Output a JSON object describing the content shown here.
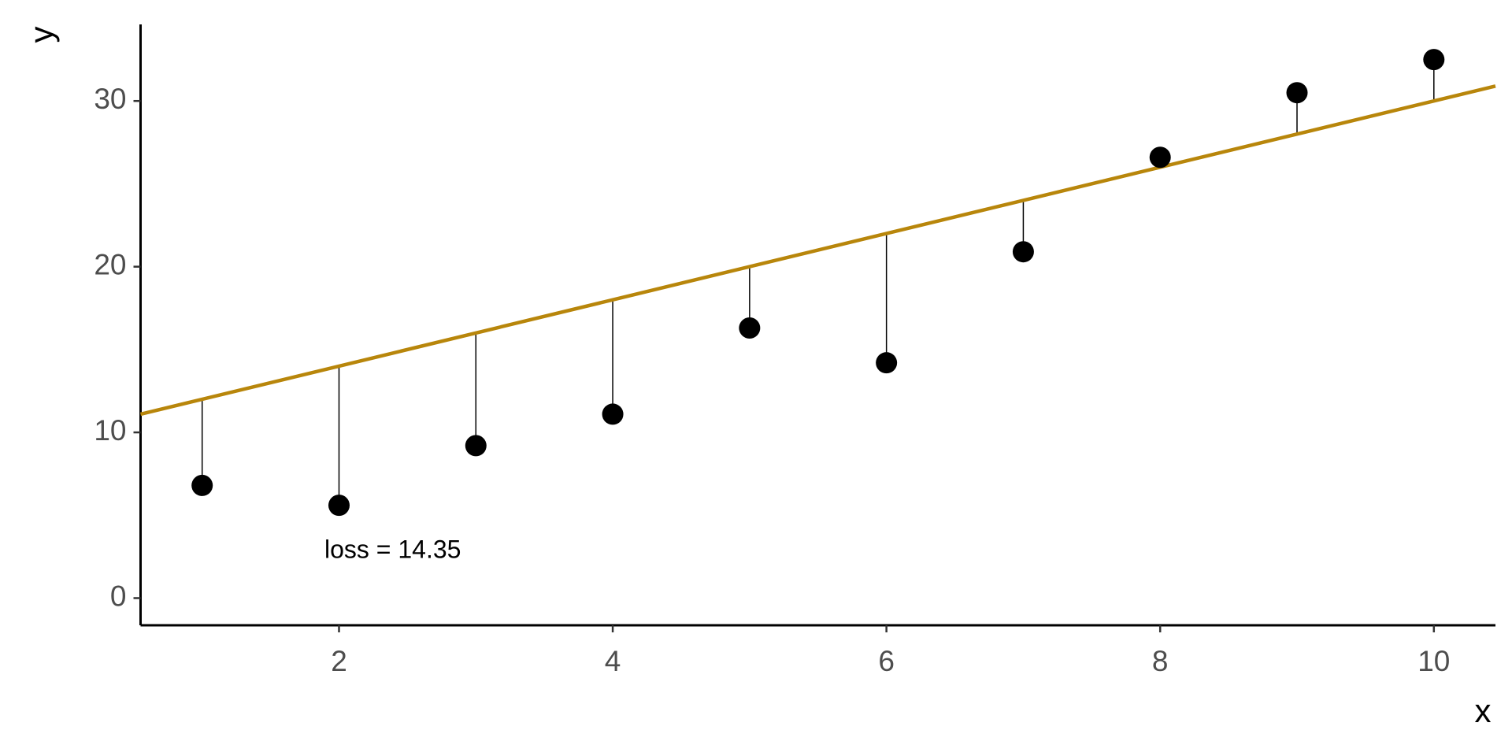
{
  "chart_data": {
    "type": "scatter",
    "x_label": "x",
    "y_label": "y",
    "annotation": "loss = 14.35",
    "x": [
      1,
      2,
      3,
      4,
      5,
      6,
      7,
      8,
      9,
      10
    ],
    "series": [
      {
        "color": "#000000",
        "values": [
          6.8,
          5.6,
          9.2,
          11.1,
          16.3,
          14.2,
          20.9,
          26.6,
          30.5,
          32.5
        ]
      }
    ],
    "fit_line": {
      "intercept": 10,
      "slope": 2,
      "color": "#b8860b"
    },
    "xlim": [
      0.55,
      10.45
    ],
    "xticks": [
      2,
      4,
      6,
      8,
      10
    ],
    "ylim": [
      -1.64,
      34.62
    ],
    "yticks": [
      0,
      10,
      20,
      30
    ],
    "grid": false
  }
}
